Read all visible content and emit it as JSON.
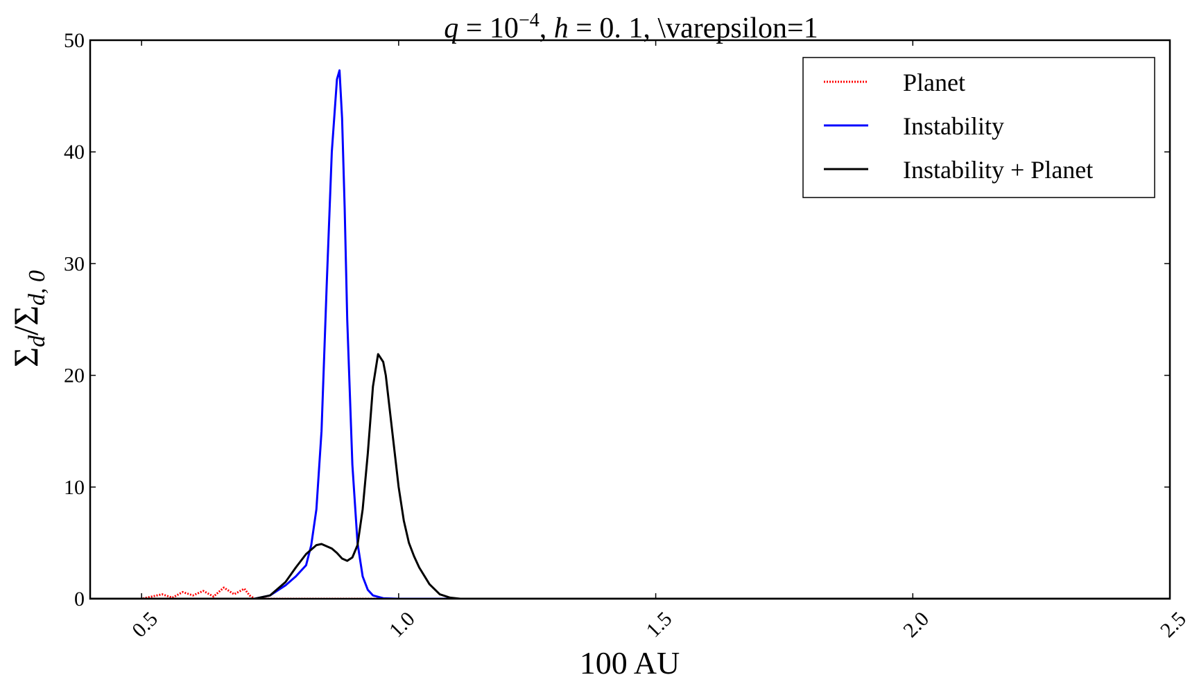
{
  "chart_data": {
    "type": "line",
    "title": "q = 10^-4, h = 0.1, \\varepsilon=1",
    "title_parts": {
      "q": "q",
      "eq1": " = 10",
      "exp": "−4",
      "comma1": ", ",
      "h": "h",
      "eq2": " = 0. 1, ",
      "tail": "\\varepsilon=1"
    },
    "xlabel": "100 AU",
    "ylabel": "Σd/Σd,0",
    "ylabel_parts": {
      "sigma1": "Σ",
      "sub1": "d",
      "slash": "/Σ",
      "sub2": "d, 0"
    },
    "xlim": [
      0.4,
      2.5
    ],
    "ylim": [
      0,
      50
    ],
    "x_ticks": [
      0.5,
      1.0,
      1.5,
      2.0,
      2.5
    ],
    "x_tick_labels": [
      "0.5",
      "1.0",
      "1.5",
      "2.0",
      "2.5"
    ],
    "y_ticks": [
      0,
      10,
      20,
      30,
      40,
      50
    ],
    "y_tick_labels": [
      "0",
      "10",
      "20",
      "30",
      "40",
      "50"
    ],
    "grid": false,
    "legend_position": "top-right",
    "series": [
      {
        "name": "Planet",
        "color": "#ff0000",
        "style": "dotted",
        "x": [
          0.4,
          0.5,
          0.52,
          0.54,
          0.56,
          0.58,
          0.6,
          0.62,
          0.64,
          0.66,
          0.68,
          0.7,
          0.71,
          0.72,
          0.75,
          1.0,
          1.5,
          2.0,
          2.5
        ],
        "y": [
          0,
          0,
          0.2,
          0.4,
          0.1,
          0.6,
          0.3,
          0.7,
          0.2,
          1.0,
          0.4,
          0.9,
          0.3,
          0,
          0,
          0,
          0,
          0,
          0
        ]
      },
      {
        "name": "Instability",
        "color": "#0000ff",
        "style": "solid",
        "x": [
          0.4,
          0.72,
          0.75,
          0.78,
          0.8,
          0.82,
          0.83,
          0.84,
          0.85,
          0.86,
          0.87,
          0.88,
          0.885,
          0.89,
          0.895,
          0.9,
          0.91,
          0.92,
          0.93,
          0.94,
          0.95,
          0.97,
          1.0,
          2.5
        ],
        "y": [
          0,
          0,
          0.3,
          1.2,
          2.0,
          3.0,
          4.8,
          8.0,
          15.0,
          28.0,
          40.0,
          46.5,
          47.3,
          43.0,
          35.0,
          25.0,
          12.0,
          5.0,
          2.0,
          0.8,
          0.3,
          0.05,
          0,
          0
        ]
      },
      {
        "name": "Instability + Planet",
        "color": "#000000",
        "style": "solid",
        "x": [
          0.4,
          0.72,
          0.75,
          0.78,
          0.8,
          0.82,
          0.84,
          0.85,
          0.86,
          0.87,
          0.88,
          0.89,
          0.9,
          0.91,
          0.92,
          0.93,
          0.94,
          0.95,
          0.96,
          0.97,
          0.975,
          0.98,
          0.99,
          1.0,
          1.01,
          1.02,
          1.03,
          1.04,
          1.06,
          1.08,
          1.1,
          1.12,
          1.2,
          2.5
        ],
        "y": [
          0,
          0,
          0.3,
          1.5,
          2.8,
          4.0,
          4.8,
          4.9,
          4.7,
          4.5,
          4.1,
          3.6,
          3.4,
          3.7,
          4.8,
          8.0,
          13.0,
          19.0,
          21.9,
          21.2,
          20.0,
          18.0,
          14.0,
          10.0,
          7.0,
          5.0,
          3.8,
          2.8,
          1.3,
          0.4,
          0.1,
          0,
          0,
          0
        ]
      }
    ]
  }
}
